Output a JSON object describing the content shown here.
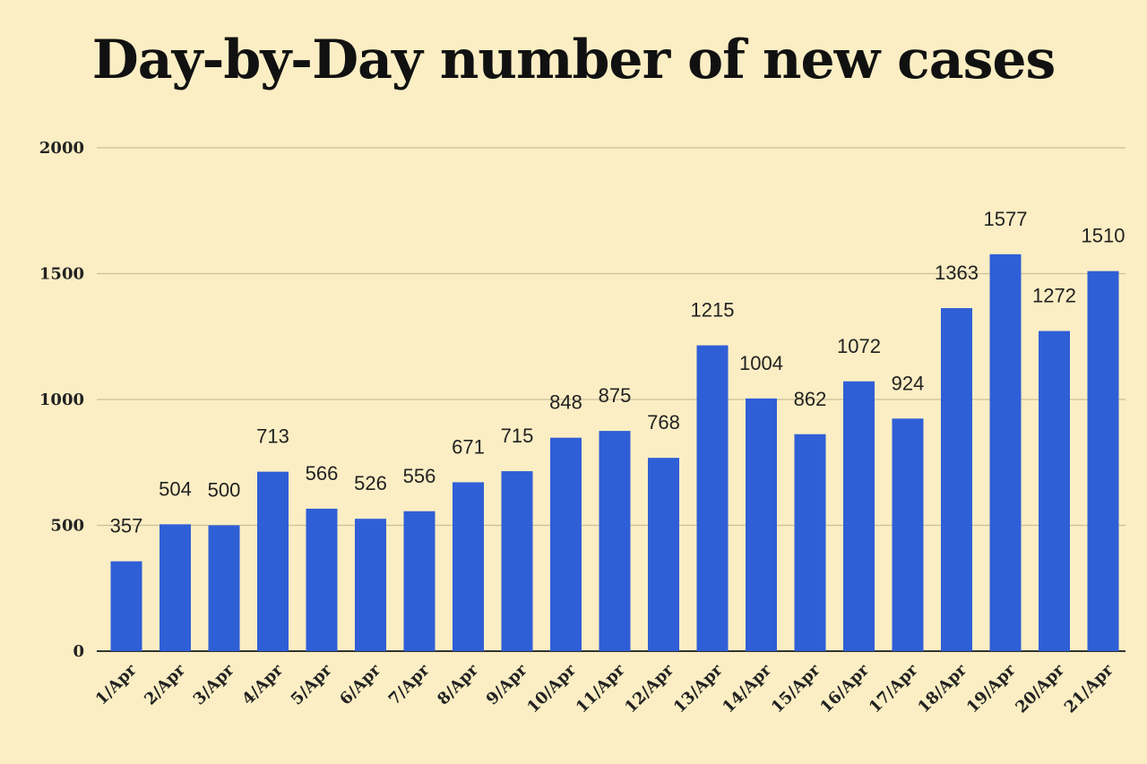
{
  "chart_data": {
    "type": "bar",
    "title": "Day-by-Day number of new cases",
    "categories": [
      "1/Apr",
      "2/Apr",
      "3/Apr",
      "4/Apr",
      "5/Apr",
      "6/Apr",
      "7/Apr",
      "8/Apr",
      "9/Apr",
      "10/Apr",
      "11/Apr",
      "12/Apr",
      "13/Apr",
      "14/Apr",
      "15/Apr",
      "16/Apr",
      "17/Apr",
      "18/Apr",
      "19/Apr",
      "20/Apr",
      "21/Apr"
    ],
    "values": [
      357,
      504,
      500,
      713,
      566,
      526,
      556,
      671,
      715,
      848,
      875,
      768,
      1215,
      1004,
      862,
      1072,
      924,
      1363,
      1577,
      1272,
      1510
    ],
    "data_labels": [
      "357",
      "504",
      "500",
      "713",
      "566",
      "526",
      "556",
      "671",
      "715",
      "848",
      "875",
      "768",
      "1215",
      "1004",
      "862",
      "1072",
      "924",
      "1363",
      "1577",
      "1272",
      "1510"
    ],
    "yticks": [
      0,
      500,
      1000,
      1500,
      2000
    ],
    "ytick_labels": [
      "0",
      "500",
      "1000",
      "1500",
      "2000"
    ],
    "ylim": [
      0,
      2000
    ],
    "grid": true,
    "legend": "none",
    "colors": {
      "bar": "#2f5fd6",
      "grid": "#c9bf9a",
      "axis": "#333333",
      "background": "#fbeec4"
    }
  }
}
